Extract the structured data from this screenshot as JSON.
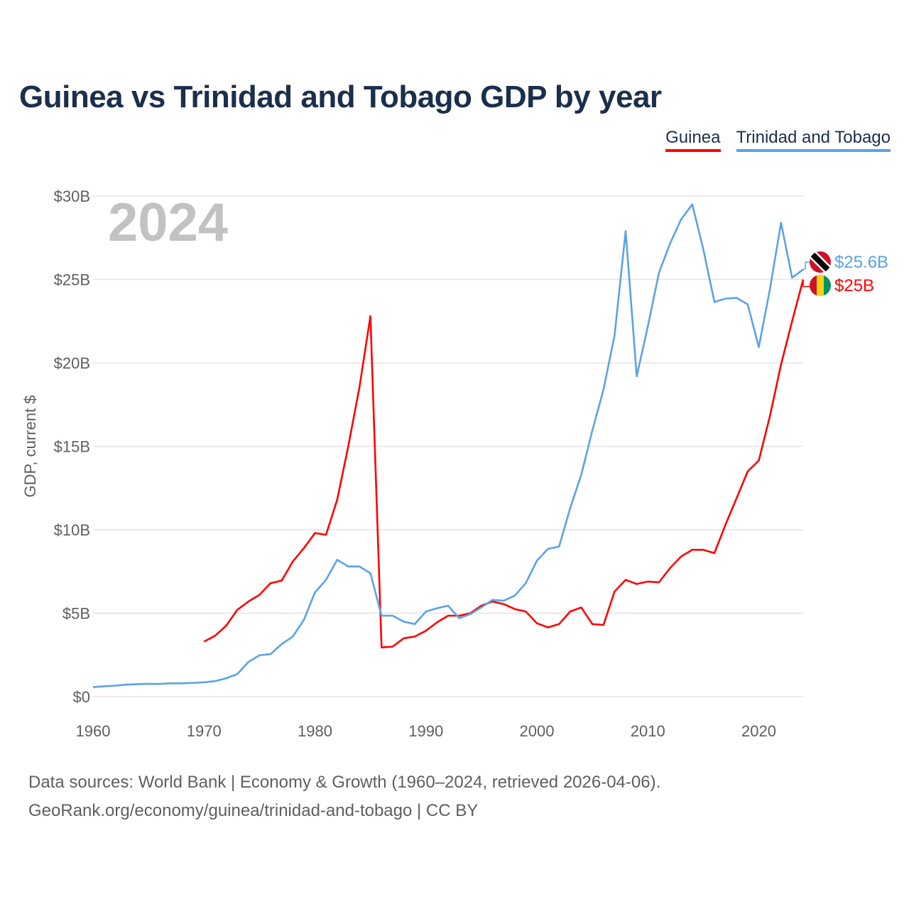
{
  "title": "Guinea vs Trinidad and Tobago GDP by year",
  "legend": [
    {
      "label": "Guinea",
      "color": "#ff0000"
    },
    {
      "label": "Trinidad and Tobago",
      "color": "#5aa3e6"
    }
  ],
  "footer": {
    "line1": "Data sources: World Bank | Economy & Growth (1960–2024, retrieved 2026-04-06).",
    "line2": "GeoRank.org/economy/guinea/trinidad-and-tobago | CC BY"
  },
  "chart_data": {
    "type": "line",
    "title": "Guinea vs Trinidad and Tobago GDP by year",
    "ylabel": "GDP, current $",
    "xlabel": "",
    "year_display": "2024",
    "xlim": [
      1960,
      2024
    ],
    "ylim": [
      0,
      30
    ],
    "x_ticks": [
      1960,
      1970,
      1980,
      1990,
      2000,
      2010,
      2020
    ],
    "y_ticks": [
      0,
      5,
      10,
      15,
      20,
      25,
      30
    ],
    "y_tick_labels": [
      "$0",
      "$5B",
      "$10B",
      "$15B",
      "$20B",
      "$25B",
      "$30B"
    ],
    "grid": true,
    "series": [
      {
        "name": "Guinea",
        "color": "#ff0000",
        "end_label": "$25B",
        "flag": "guinea-flag-icon",
        "points": [
          [
            1970,
            3.3
          ],
          [
            1971,
            3.65
          ],
          [
            1972,
            4.25
          ],
          [
            1973,
            5.2
          ],
          [
            1974,
            5.7
          ],
          [
            1975,
            6.1
          ],
          [
            1976,
            6.8
          ],
          [
            1977,
            6.95
          ],
          [
            1978,
            8.1
          ],
          [
            1979,
            8.9
          ],
          [
            1980,
            9.8
          ],
          [
            1981,
            9.7
          ],
          [
            1982,
            11.8
          ],
          [
            1983,
            15.0
          ],
          [
            1984,
            18.5
          ],
          [
            1985,
            22.8
          ],
          [
            1986,
            2.95
          ],
          [
            1987,
            3.0
          ],
          [
            1988,
            3.5
          ],
          [
            1989,
            3.6
          ],
          [
            1990,
            3.95
          ],
          [
            1991,
            4.45
          ],
          [
            1992,
            4.85
          ],
          [
            1993,
            4.85
          ],
          [
            1994,
            5.0
          ],
          [
            1995,
            5.45
          ],
          [
            1996,
            5.7
          ],
          [
            1997,
            5.55
          ],
          [
            1998,
            5.25
          ],
          [
            1999,
            5.1
          ],
          [
            2000,
            4.4
          ],
          [
            2001,
            4.15
          ],
          [
            2002,
            4.35
          ],
          [
            2003,
            5.1
          ],
          [
            2004,
            5.35
          ],
          [
            2005,
            4.35
          ],
          [
            2006,
            4.3
          ],
          [
            2007,
            6.3
          ],
          [
            2008,
            7.0
          ],
          [
            2009,
            6.75
          ],
          [
            2010,
            6.9
          ],
          [
            2011,
            6.85
          ],
          [
            2012,
            7.7
          ],
          [
            2013,
            8.4
          ],
          [
            2014,
            8.8
          ],
          [
            2015,
            8.8
          ],
          [
            2016,
            8.6
          ],
          [
            2017,
            10.3
          ],
          [
            2018,
            11.9
          ],
          [
            2019,
            13.5
          ],
          [
            2020,
            14.15
          ],
          [
            2021,
            16.8
          ],
          [
            2022,
            19.9
          ],
          [
            2023,
            22.5
          ],
          [
            2024,
            25.0
          ]
        ]
      },
      {
        "name": "Trinidad and Tobago",
        "color": "#5aa3e6",
        "end_label": "$25.6B",
        "flag": "trinidad-and-tobago-flag-icon",
        "points": [
          [
            1960,
            0.57
          ],
          [
            1961,
            0.62
          ],
          [
            1962,
            0.66
          ],
          [
            1963,
            0.72
          ],
          [
            1964,
            0.75
          ],
          [
            1965,
            0.77
          ],
          [
            1966,
            0.76
          ],
          [
            1967,
            0.8
          ],
          [
            1968,
            0.8
          ],
          [
            1969,
            0.82
          ],
          [
            1970,
            0.86
          ],
          [
            1971,
            0.93
          ],
          [
            1972,
            1.1
          ],
          [
            1973,
            1.35
          ],
          [
            1974,
            2.08
          ],
          [
            1975,
            2.48
          ],
          [
            1976,
            2.55
          ],
          [
            1977,
            3.15
          ],
          [
            1978,
            3.6
          ],
          [
            1979,
            4.6
          ],
          [
            1980,
            6.25
          ],
          [
            1981,
            7.0
          ],
          [
            1982,
            8.2
          ],
          [
            1983,
            7.8
          ],
          [
            1984,
            7.8
          ],
          [
            1985,
            7.4
          ],
          [
            1986,
            4.85
          ],
          [
            1987,
            4.85
          ],
          [
            1988,
            4.5
          ],
          [
            1989,
            4.35
          ],
          [
            1990,
            5.1
          ],
          [
            1991,
            5.3
          ],
          [
            1992,
            5.45
          ],
          [
            1993,
            4.7
          ],
          [
            1994,
            4.95
          ],
          [
            1995,
            5.35
          ],
          [
            1996,
            5.8
          ],
          [
            1997,
            5.75
          ],
          [
            1998,
            6.05
          ],
          [
            1999,
            6.8
          ],
          [
            2000,
            8.15
          ],
          [
            2001,
            8.85
          ],
          [
            2002,
            9.0
          ],
          [
            2003,
            11.3
          ],
          [
            2004,
            13.3
          ],
          [
            2005,
            15.95
          ],
          [
            2006,
            18.4
          ],
          [
            2007,
            21.65
          ],
          [
            2008,
            27.9
          ],
          [
            2009,
            19.2
          ],
          [
            2010,
            22.2
          ],
          [
            2011,
            25.4
          ],
          [
            2012,
            27.15
          ],
          [
            2013,
            28.6
          ],
          [
            2014,
            29.5
          ],
          [
            2015,
            26.8
          ],
          [
            2016,
            23.65
          ],
          [
            2017,
            23.85
          ],
          [
            2018,
            23.9
          ],
          [
            2019,
            23.5
          ],
          [
            2020,
            20.95
          ],
          [
            2021,
            24.4
          ],
          [
            2022,
            28.4
          ],
          [
            2023,
            25.1
          ],
          [
            2024,
            25.6
          ]
        ]
      }
    ]
  }
}
